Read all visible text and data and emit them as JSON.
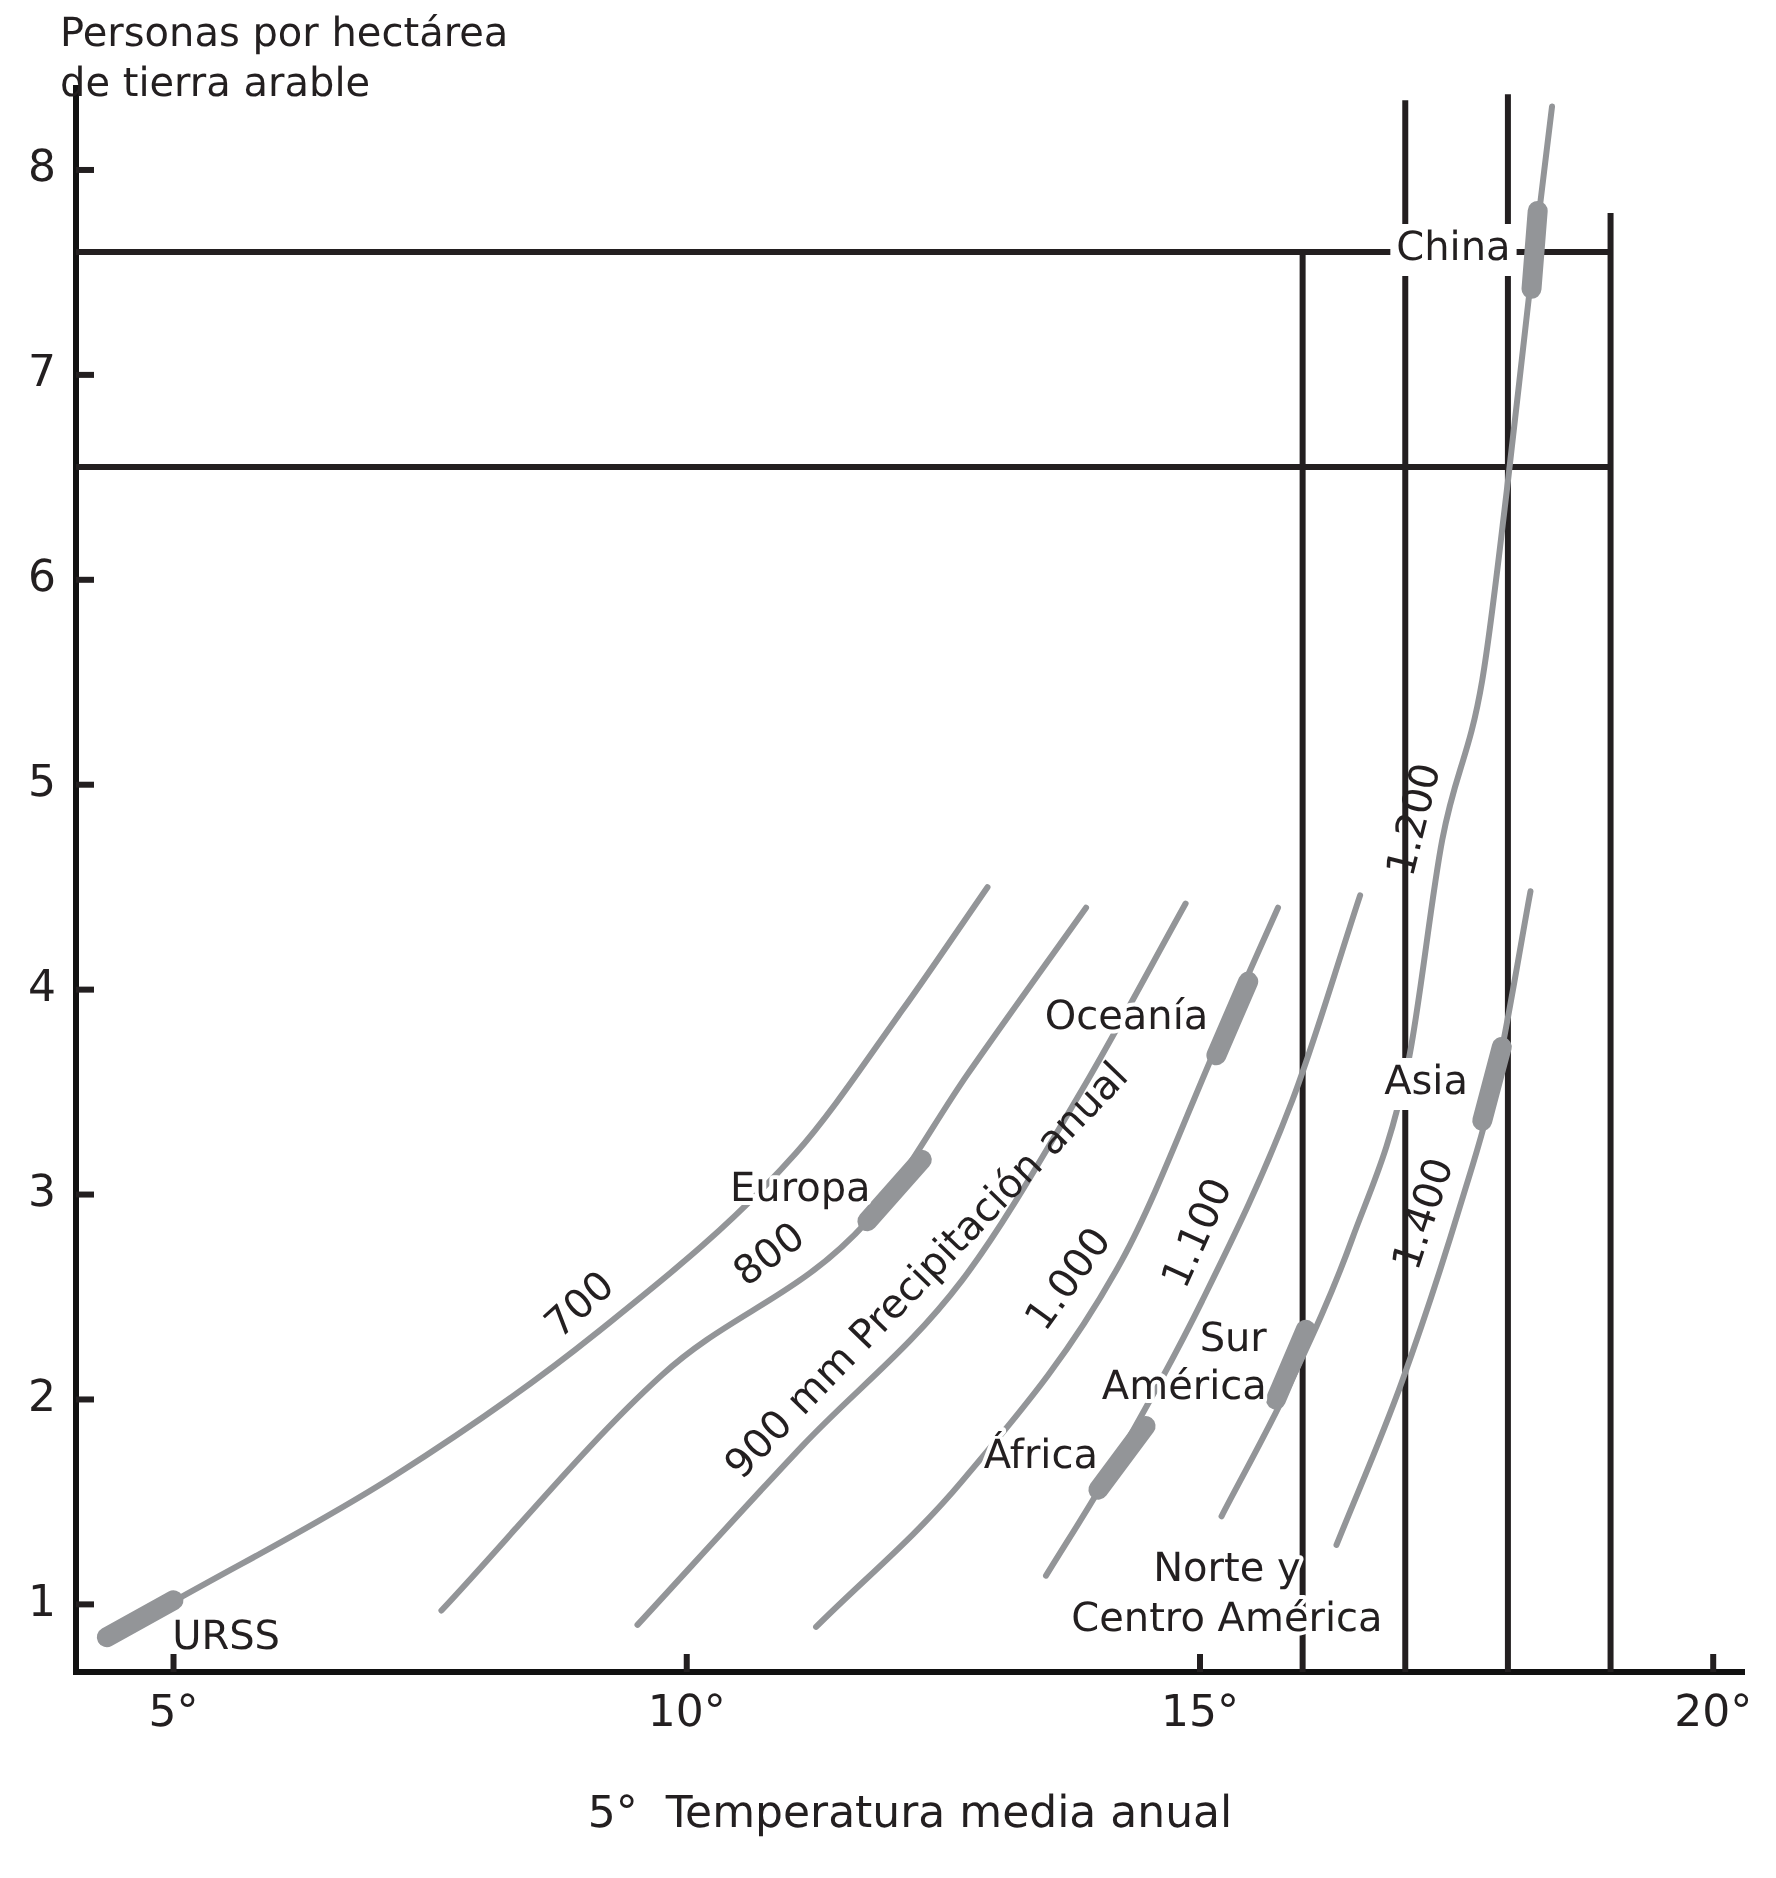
{
  "chart_data": {
    "type": "line",
    "ylabel": "Personas por hectárea\nde tierra arable",
    "xlabel": "5°  Temperatura media anual",
    "xlim": [
      4.05,
      20.3
    ],
    "ylim": [
      0.67,
      8.4
    ],
    "xticks": [
      {
        "value": 5,
        "label": "5°"
      },
      {
        "value": 10,
        "label": "10°"
      },
      {
        "value": 15,
        "label": "15°"
      },
      {
        "value": 20,
        "label": "20°"
      }
    ],
    "yticks": [
      1,
      2,
      3,
      4,
      5,
      6,
      7,
      8
    ],
    "grid": false,
    "legend": false,
    "marker": "none",
    "line_style": "solid",
    "annotations": [
      "Norte y\nCentro América"
    ],
    "series": [
      {
        "color": "#231f20",
        "x": [
          16,
          16
        ],
        "values": [
          0.67,
          7.6
        ]
      },
      {
        "color": "#231f20",
        "x": [
          17,
          17
        ],
        "values": [
          0.67,
          8.34
        ]
      },
      {
        "color": "#231f20",
        "x": [
          18,
          18
        ],
        "values": [
          0.67,
          8.37
        ]
      },
      {
        "color": "#231f20",
        "x": [
          19,
          19
        ],
        "values": [
          0.67,
          7.79
        ]
      },
      {
        "color": "#231f20",
        "x": [
          4.05,
          19
        ],
        "values": [
          7.6,
          7.6
        ]
      },
      {
        "color": "#231f20",
        "x": [
          4.05,
          19
        ],
        "values": [
          6.55,
          6.55
        ]
      },
      {
        "name": "700",
        "color": "#939598",
        "x": [
          4.3,
          5.02,
          7.16,
          9.11,
          11.06,
          12.1,
          12.93
        ],
        "values": [
          0.82,
          1.02,
          1.63,
          2.32,
          3.2,
          3.9,
          4.5
        ]
      },
      {
        "name": "800",
        "color": "#939598",
        "x": [
          7.61,
          9.76,
          11.76,
          12.74,
          13.89
        ],
        "values": [
          0.97,
          2.12,
          2.87,
          3.59,
          4.4
        ]
      },
      {
        "name": "900 mm Precipitación anual",
        "color": "#939598",
        "x": [
          9.52,
          11.12,
          12.68,
          13.85,
          14.86
        ],
        "values": [
          0.9,
          1.77,
          2.58,
          3.51,
          4.42
        ]
      },
      {
        "name": "1.000",
        "color": "#939598",
        "x": [
          11.26,
          12.68,
          14.24,
          15.21,
          15.76
        ],
        "values": [
          0.89,
          1.6,
          2.68,
          3.78,
          4.4
        ]
      },
      {
        "name": "1.100",
        "color": "#939598",
        "x": [
          13.5,
          14.1,
          15.02,
          15.9,
          16.56
        ],
        "values": [
          1.14,
          1.63,
          2.48,
          3.46,
          4.46
        ]
      },
      {
        "name": "1.200",
        "color": "#939598",
        "x": [
          15.21,
          15.86,
          16.48,
          17.03,
          17.36,
          17.75,
          18.0,
          18.2,
          18.43
        ],
        "values": [
          1.43,
          2.06,
          2.78,
          3.65,
          4.73,
          5.51,
          6.48,
          7.36,
          8.31
        ]
      },
      {
        "name": "1.400",
        "color": "#939598",
        "x": [
          16.33,
          16.97,
          17.55,
          17.88,
          18.22
        ],
        "values": [
          1.29,
          2.09,
          2.97,
          3.56,
          4.48
        ]
      },
      {
        "name": "URSS",
        "color": "#939598",
        "x": [
          4.35,
          5.0
        ],
        "values": [
          0.84,
          1.02
        ]
      },
      {
        "name": "Europa",
        "color": "#939598",
        "x": [
          11.76,
          12.29
        ],
        "values": [
          2.87,
          3.17
        ]
      },
      {
        "name": "Oceanía",
        "color": "#939598",
        "x": [
          15.16,
          15.47
        ],
        "values": [
          3.68,
          4.04
        ]
      },
      {
        "name": "África",
        "color": "#939598",
        "x": [
          14.01,
          14.47
        ],
        "values": [
          1.56,
          1.87
        ]
      },
      {
        "name": "Sur\nAmérica",
        "color": "#939598",
        "x": [
          15.74,
          16.03
        ],
        "values": [
          2.0,
          2.34
        ]
      },
      {
        "name": "Asia",
        "color": "#939598",
        "x": [
          17.75,
          17.94
        ],
        "values": [
          3.36,
          3.72
        ]
      },
      {
        "name": "China",
        "color": "#939598",
        "x": [
          18.23,
          18.29
        ],
        "values": [
          7.42,
          7.8
        ]
      }
    ]
  }
}
